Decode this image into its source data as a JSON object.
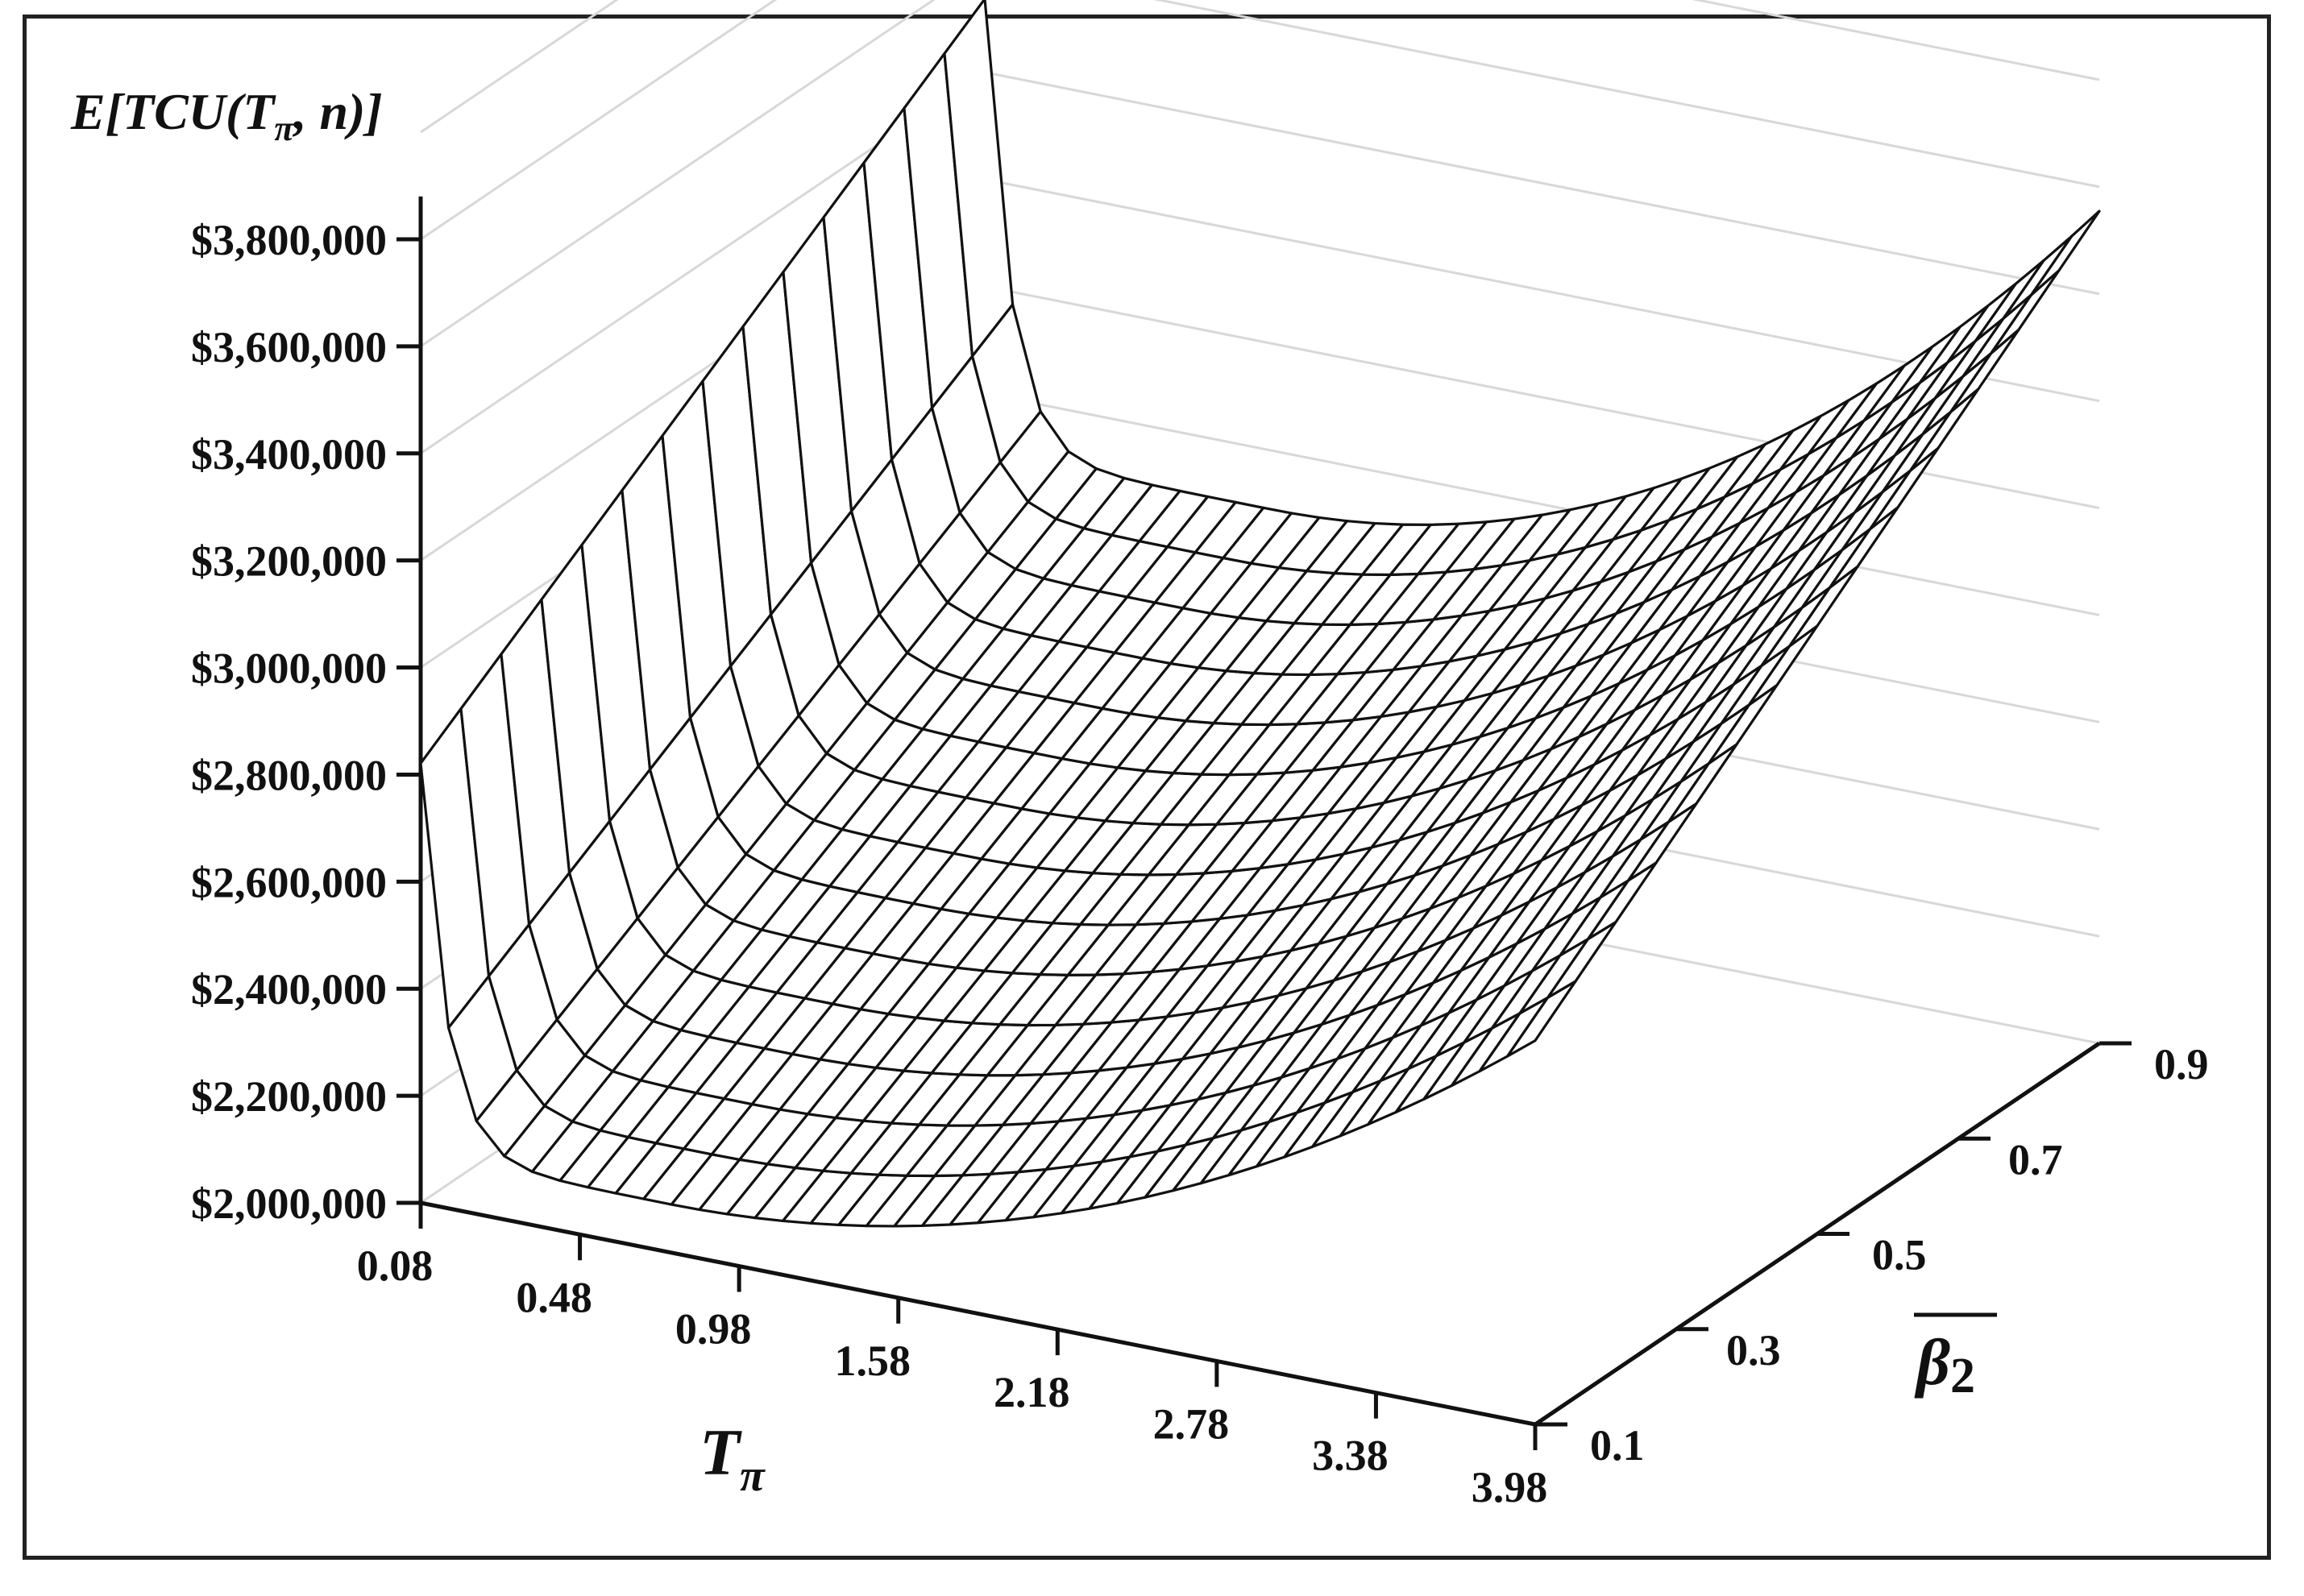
{
  "chart_data": {
    "type": "surface",
    "title": "",
    "zlabel": {
      "prefix": "E[TCU(T",
      "sub": "π",
      "suffix": ", n)]"
    },
    "xlabel": {
      "main": "T",
      "sub": "π"
    },
    "ylabel": {
      "main": "β",
      "sub": "2"
    },
    "x_ticks": [
      "0.08",
      "0.48",
      "0.98",
      "1.58",
      "2.18",
      "2.78",
      "3.38",
      "3.98"
    ],
    "y_ticks": [
      "0.1",
      "0.3",
      "0.5",
      "0.7",
      "0.9"
    ],
    "z_ticks": [
      "$2,000,000",
      "$2,200,000",
      "$2,400,000",
      "$2,600,000",
      "$2,800,000",
      "$3,000,000",
      "$3,200,000",
      "$3,400,000",
      "$3,600,000",
      "$3,800,000"
    ],
    "zlim": [
      2000000,
      3800000
    ],
    "x_range": [
      0.08,
      3.98
    ],
    "y_range": [
      0.1,
      0.9
    ],
    "grid": true,
    "wireframe_color": "#111111",
    "gridline_color": "#d8d8d8",
    "corner_values": {
      "x_0.08_y_0.1": 3000000,
      "x_0.08_y_0.9": 3850000,
      "x_0.48_y_0.1": 2180000,
      "x_0.48_y_0.9": 2900000,
      "x_3.98_y_0.1": 2750000,
      "x_3.98_y_0.9": 3600000
    }
  }
}
